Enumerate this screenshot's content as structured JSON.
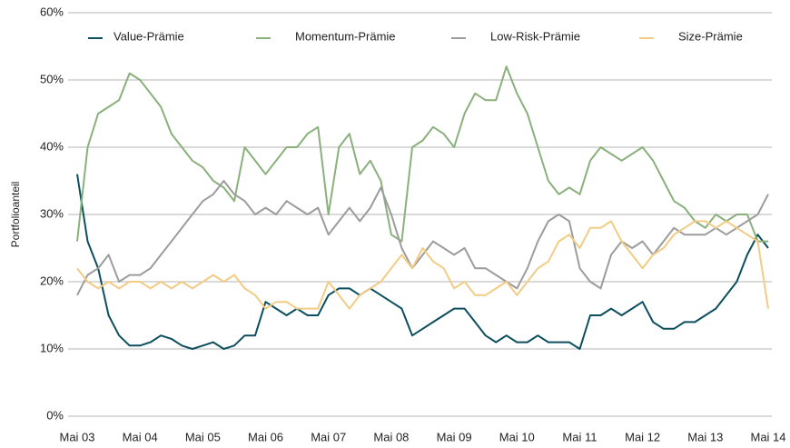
{
  "chart_data": {
    "type": "line",
    "ylabel": "Portfolioanteil",
    "categories": [
      "Mai 03",
      null,
      null,
      null,
      null,
      null,
      "Mai 04",
      null,
      null,
      null,
      null,
      null,
      "Mai 05",
      null,
      null,
      null,
      null,
      null,
      "Mai 06",
      null,
      null,
      null,
      null,
      null,
      "Mai 07",
      null,
      null,
      null,
      null,
      null,
      "Mai 08",
      null,
      null,
      null,
      null,
      null,
      "Mai 09",
      null,
      null,
      null,
      null,
      null,
      "Mai 10",
      null,
      null,
      null,
      null,
      null,
      "Mai 11",
      null,
      null,
      null,
      null,
      null,
      "Mai 12",
      null,
      null,
      null,
      null,
      null,
      "Mai 13",
      null,
      null,
      null,
      null,
      null,
      "Mai 14"
    ],
    "series": [
      {
        "name": "Value-Prämie",
        "color": "#0d4f5e",
        "values": [
          36,
          26,
          22,
          15,
          12,
          10.5,
          10.5,
          11,
          12,
          11.5,
          10.5,
          10,
          10.5,
          11,
          10,
          10.5,
          12,
          12,
          17,
          16,
          15,
          16,
          15,
          15,
          18,
          19,
          19,
          18,
          19,
          18,
          17,
          16,
          12,
          13,
          14,
          15,
          16,
          16,
          14,
          12,
          11,
          12,
          11,
          11,
          12,
          11,
          11,
          11,
          10,
          15,
          15,
          16,
          15,
          16,
          17,
          14,
          13,
          13,
          14,
          14,
          15,
          16,
          18,
          20,
          24,
          27,
          25
        ]
      },
      {
        "name": "Momentum-Prämie",
        "color": "#8ab07c",
        "values": [
          26,
          40,
          45,
          46,
          47,
          51,
          50,
          48,
          46,
          42,
          40,
          38,
          37,
          35,
          34,
          32,
          40,
          38,
          36,
          38,
          40,
          40,
          42,
          43,
          30,
          40,
          42,
          36,
          38,
          35,
          27,
          26,
          40,
          41,
          43,
          42,
          40,
          45,
          48,
          47,
          47,
          52,
          48,
          45,
          40,
          35,
          33,
          34,
          33,
          38,
          40,
          39,
          38,
          39,
          40,
          38,
          35,
          32,
          31,
          29,
          28,
          30,
          29,
          30,
          30,
          26,
          26
        ]
      },
      {
        "name": "Low-Risk-Prämie",
        "color": "#9c9c9c",
        "values": [
          18,
          21,
          22,
          24,
          20,
          21,
          21,
          22,
          24,
          26,
          28,
          30,
          32,
          33,
          35,
          33,
          32,
          30,
          31,
          30,
          32,
          31,
          30,
          31,
          27,
          29,
          31,
          29,
          31,
          34,
          30,
          25,
          22,
          24,
          26,
          25,
          24,
          25,
          22,
          22,
          21,
          20,
          19,
          22,
          26,
          29,
          30,
          29,
          22,
          20,
          19,
          24,
          26,
          25,
          26,
          24,
          26,
          28,
          27,
          27,
          27,
          28,
          27,
          28,
          29,
          30,
          33
        ]
      },
      {
        "name": "Size-Prämie",
        "color": "#f2cc84",
        "values": [
          22,
          20,
          19,
          20,
          19,
          20,
          20,
          19,
          20,
          19,
          20,
          19,
          20,
          21,
          20,
          21,
          19,
          18,
          16,
          17,
          17,
          16,
          16,
          16,
          20,
          18,
          16,
          18,
          19,
          20,
          22,
          24,
          22,
          25,
          23,
          22,
          19,
          20,
          18,
          18,
          19,
          20,
          18,
          20,
          22,
          23,
          26,
          27,
          25,
          28,
          28,
          29,
          26,
          24,
          22,
          24,
          25,
          27,
          28,
          29,
          29,
          28,
          29,
          28,
          27,
          26,
          16
        ]
      }
    ],
    "ylim": [
      0,
      60
    ],
    "yticks": [
      {
        "value": 0,
        "label": "0%"
      },
      {
        "value": 10,
        "label": "10%"
      },
      {
        "value": 20,
        "label": "20%"
      },
      {
        "value": 30,
        "label": "30%"
      },
      {
        "value": 40,
        "label": "40%"
      },
      {
        "value": 50,
        "label": "50%"
      },
      {
        "value": 60,
        "label": "60%"
      }
    ],
    "grid": true
  }
}
